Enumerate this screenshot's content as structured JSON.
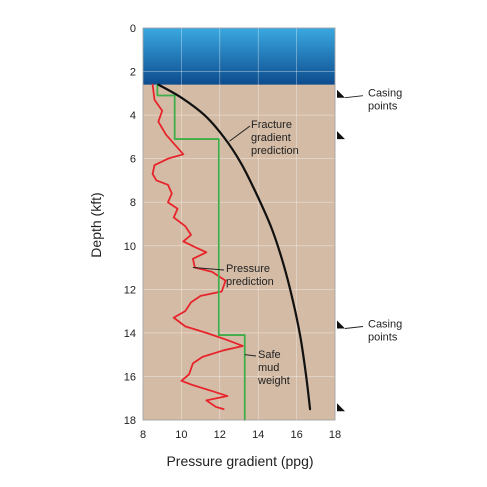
{
  "chart_data": {
    "type": "line",
    "xlabel": "Pressure gradient (ppg)",
    "ylabel": "Depth (kft)",
    "xlim": [
      8,
      18
    ],
    "ylim": [
      18,
      0
    ],
    "x_ticks": [
      "8",
      "10",
      "12",
      "14",
      "16",
      "18"
    ],
    "y_ticks": [
      "0",
      "2",
      "4",
      "6",
      "8",
      "10",
      "12",
      "14",
      "16",
      "18"
    ],
    "water_depth": 2.6,
    "grid": true,
    "colors": {
      "water_top": "#3aa8e0",
      "water_bottom": "#0d4c8f",
      "sediment": "#d3bba5",
      "grid": "#ffffff",
      "pore_pressure": "#e8242b",
      "mud_weight": "#3fae49",
      "fracture_gradient": "#111111"
    },
    "series": [
      {
        "key": "fracture_gradient",
        "points": [
          [
            8.8,
            2.6
          ],
          [
            10.0,
            3.2
          ],
          [
            11.2,
            4.0
          ],
          [
            12.2,
            5.0
          ],
          [
            13.1,
            6.2
          ],
          [
            13.9,
            7.6
          ],
          [
            14.7,
            9.2
          ],
          [
            15.3,
            10.8
          ],
          [
            15.8,
            12.5
          ],
          [
            16.2,
            14.2
          ],
          [
            16.5,
            16.0
          ],
          [
            16.7,
            17.5
          ]
        ]
      },
      {
        "key": "mud_weight",
        "points": [
          [
            8.75,
            2.6
          ],
          [
            8.75,
            3.1
          ],
          [
            9.65,
            3.1
          ],
          [
            9.65,
            5.1
          ],
          [
            11.95,
            5.1
          ],
          [
            11.95,
            14.1
          ],
          [
            13.3,
            14.1
          ],
          [
            13.3,
            18.0
          ]
        ]
      },
      {
        "key": "pore_pressure",
        "points": [
          [
            8.5,
            2.6
          ],
          [
            8.6,
            3.3
          ],
          [
            9.0,
            3.8
          ],
          [
            8.8,
            4.3
          ],
          [
            9.2,
            4.9
          ],
          [
            9.6,
            5.3
          ],
          [
            10.1,
            5.8
          ],
          [
            9.3,
            6.0
          ],
          [
            8.6,
            6.3
          ],
          [
            8.5,
            6.7
          ],
          [
            8.7,
            7.0
          ],
          [
            9.3,
            7.2
          ],
          [
            9.5,
            7.6
          ],
          [
            9.3,
            8.0
          ],
          [
            9.8,
            8.3
          ],
          [
            9.6,
            8.7
          ],
          [
            10.2,
            9.1
          ],
          [
            10.5,
            9.5
          ],
          [
            10.1,
            9.8
          ],
          [
            10.8,
            10.1
          ],
          [
            11.3,
            10.3
          ],
          [
            10.6,
            10.6
          ],
          [
            10.7,
            11.0
          ],
          [
            11.6,
            11.2
          ],
          [
            12.3,
            11.6
          ],
          [
            12.1,
            12.1
          ],
          [
            11.0,
            12.3
          ],
          [
            10.5,
            12.6
          ],
          [
            10.2,
            13.0
          ],
          [
            9.6,
            13.3
          ],
          [
            10.2,
            13.7
          ],
          [
            11.3,
            14.0
          ],
          [
            12.3,
            14.3
          ],
          [
            13.2,
            14.6
          ],
          [
            12.2,
            14.8
          ],
          [
            11.1,
            15.1
          ],
          [
            10.6,
            15.4
          ],
          [
            10.4,
            15.9
          ],
          [
            10.0,
            16.2
          ],
          [
            10.6,
            16.4
          ],
          [
            11.7,
            16.7
          ],
          [
            12.4,
            16.9
          ],
          [
            11.3,
            17.1
          ],
          [
            11.8,
            17.4
          ],
          [
            12.2,
            17.5
          ]
        ]
      }
    ],
    "annotations": [
      {
        "key": "fracture",
        "lines": [
          "Fracture",
          "gradient",
          "prediction"
        ],
        "arrow_to": [
          12.5,
          5.2
        ]
      },
      {
        "key": "pressure",
        "lines": [
          "Pressure",
          "prediction"
        ],
        "arrow_to": [
          10.6,
          11.0
        ]
      },
      {
        "key": "mud",
        "lines": [
          "Safe",
          "mud",
          "weight"
        ],
        "arrow_to": [
          13.3,
          15.0
        ]
      }
    ],
    "casing_points": {
      "label_lines": [
        "Casing",
        "points"
      ],
      "depths": [
        3.2,
        5.1,
        13.8,
        17.6
      ]
    }
  }
}
